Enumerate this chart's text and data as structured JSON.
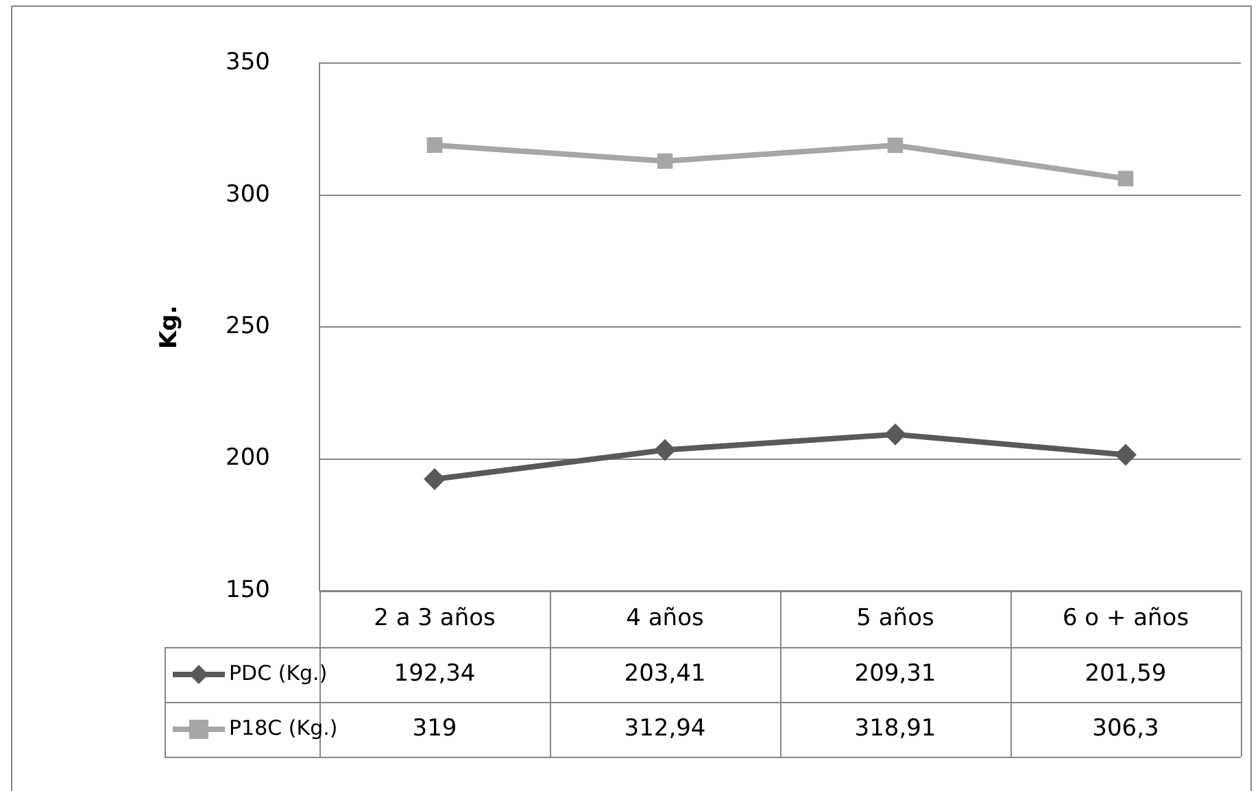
{
  "chart_data": {
    "type": "line",
    "ylabel": "Kg.",
    "categories": [
      "2 a 3 años",
      "4 años",
      "5 años",
      "6 o + años"
    ],
    "series": [
      {
        "name": "PDC (Kg.)",
        "color": "#595959",
        "marker": "diamond",
        "values": [
          192.34,
          203.41,
          209.31,
          201.59
        ],
        "value_labels": [
          "192,34",
          "203,41",
          "209,31",
          "201,59"
        ]
      },
      {
        "name": "P18C (Kg.)",
        "color": "#a6a6a6",
        "marker": "square",
        "values": [
          319,
          312.94,
          318.91,
          306.3
        ],
        "value_labels": [
          "319",
          "312,94",
          "318,91",
          "306,3"
        ]
      }
    ],
    "ylim": [
      150,
      350
    ],
    "yticks": [
      150,
      200,
      250,
      300,
      350
    ],
    "grid": "y",
    "legend": "bottom left"
  }
}
